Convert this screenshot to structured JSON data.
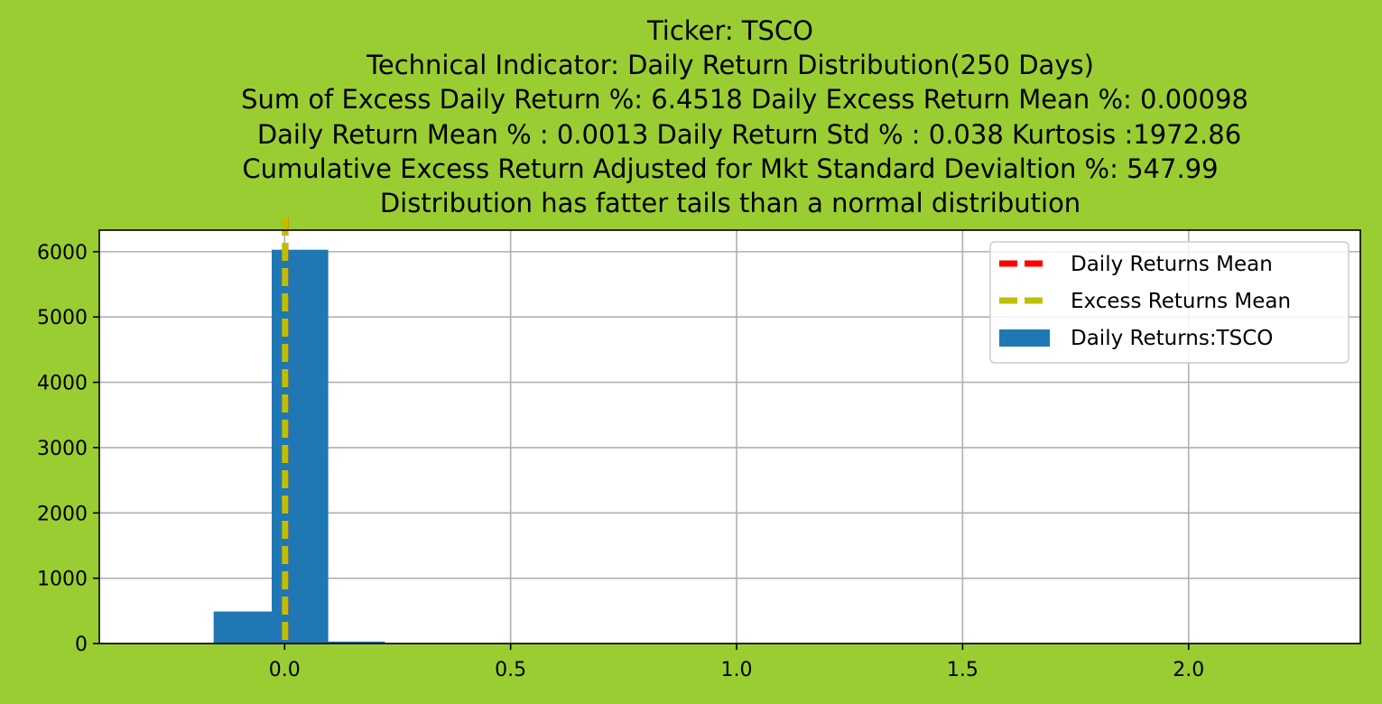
{
  "chart_data": {
    "type": "bar",
    "title_lines": [
      "Ticker: TSCO",
      "Technical Indicator: Daily Return Distribution(250 Days)",
      "Sum of Excess Daily Return %: 6.4518   Daily Excess Return Mean %: 0.00098",
      "Daily Return Mean % : 0.0013    Daily Return Std % : 0.038  Kurtosis :1972.86",
      "Cumulative Excess Return Adjusted for Mkt Standard Devialtion %: 547.99",
      "Distribution has fatter tails than a normal distribution"
    ],
    "xlim": [
      -0.41,
      2.38
    ],
    "ylim": [
      0,
      6330
    ],
    "xticks": [
      0.0,
      0.5,
      1.0,
      1.5,
      2.0
    ],
    "xtick_labels": [
      "0.0",
      "0.5",
      "1.0",
      "1.5",
      "2.0"
    ],
    "yticks": [
      0,
      1000,
      2000,
      3000,
      4000,
      5000,
      6000
    ],
    "ytick_labels": [
      "0",
      "1000",
      "2000",
      "3000",
      "4000",
      "5000",
      "6000"
    ],
    "grid": true,
    "legend_position": "top-right",
    "histogram": {
      "name": "Daily Returns:TSCO",
      "color": "#1f77b4",
      "bins": [
        {
          "x0": -0.157,
          "x1": -0.0285,
          "count": 490
        },
        {
          "x0": -0.0285,
          "x1": 0.0965,
          "count": 6030
        },
        {
          "x0": 0.0965,
          "x1": 0.222,
          "count": 30
        },
        {
          "x0": 0.222,
          "x1": 0.347,
          "count": 0
        },
        {
          "x0": 0.347,
          "x1": 0.472,
          "count": 0
        },
        {
          "x0": 0.472,
          "x1": 0.597,
          "count": 0
        },
        {
          "x0": 0.597,
          "x1": 0.722,
          "count": 0
        },
        {
          "x0": 0.722,
          "x1": 0.847,
          "count": 0
        },
        {
          "x0": 0.847,
          "x1": 0.972,
          "count": 0
        },
        {
          "x0": 0.972,
          "x1": 1.097,
          "count": 0
        },
        {
          "x0": 1.097,
          "x1": 1.222,
          "count": 0
        },
        {
          "x0": 1.222,
          "x1": 1.347,
          "count": 0
        },
        {
          "x0": 1.347,
          "x1": 1.472,
          "count": 0
        },
        {
          "x0": 1.472,
          "x1": 1.597,
          "count": 0
        },
        {
          "x0": 1.597,
          "x1": 1.722,
          "count": 0
        },
        {
          "x0": 1.722,
          "x1": 1.847,
          "count": 0
        },
        {
          "x0": 1.847,
          "x1": 1.972,
          "count": 0
        },
        {
          "x0": 1.972,
          "x1": 2.097,
          "count": 0
        },
        {
          "x0": 2.097,
          "x1": 2.222,
          "count": 0
        },
        {
          "x0": 2.222,
          "x1": 2.347,
          "count": 1
        }
      ]
    },
    "vlines": [
      {
        "name": "Daily Returns Mean",
        "x": 0.0013,
        "color": "#ff0000",
        "style": "dashed"
      },
      {
        "name": "Excess Returns Mean",
        "x": 0.00098,
        "color": "#bfbf00",
        "style": "dashed"
      }
    ],
    "legend": [
      {
        "label": "Daily Returns Mean",
        "kind": "line",
        "color": "#ff0000"
      },
      {
        "label": "Excess Returns Mean",
        "kind": "line",
        "color": "#bfbf00"
      },
      {
        "label": "Daily Returns:TSCO",
        "kind": "patch",
        "color": "#1f77b4"
      }
    ]
  }
}
